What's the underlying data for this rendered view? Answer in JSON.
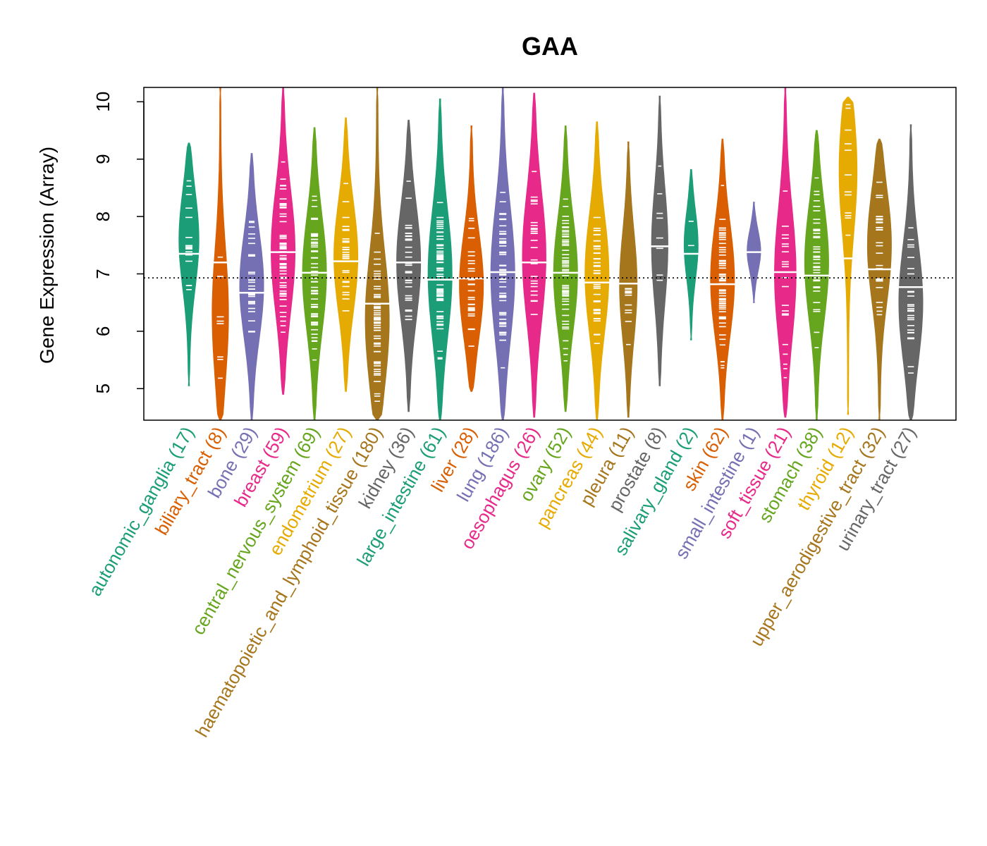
{
  "chart_data": {
    "type": "violin",
    "title": "GAA",
    "xlabel": "",
    "ylabel": "Gene Expression (Array)",
    "ylim": [
      4.45,
      10.25
    ],
    "yticks": [
      5,
      6,
      7,
      8,
      9,
      10
    ],
    "reference_line": 6.93,
    "categories": [
      {
        "name": "autonomic_ganglia",
        "n": 17,
        "label": "autonomic_ganglia (17)",
        "color": "#1B9E77",
        "median": 7.35,
        "min": 5.05,
        "max": 9.28,
        "widest_at": 7.6
      },
      {
        "name": "biliary_tract",
        "n": 8,
        "label": "biliary_tract (8)",
        "color": "#D95F02",
        "median": 7.2,
        "min": 4.45,
        "max": 10.25,
        "widest_at": 6.3
      },
      {
        "name": "bone",
        "n": 29,
        "label": "bone (29)",
        "color": "#7570B3",
        "median": 6.67,
        "min": 4.45,
        "max": 9.1,
        "widest_at": 6.8
      },
      {
        "name": "breast",
        "n": 59,
        "label": "breast (59)",
        "color": "#E7298A",
        "median": 7.38,
        "min": 4.9,
        "max": 10.25,
        "widest_at": 7.4
      },
      {
        "name": "central_nervous_system",
        "n": 69,
        "label": "central_nervous_system (69)",
        "color": "#66A61E",
        "median": 7.02,
        "min": 4.45,
        "max": 9.55,
        "widest_at": 7.0
      },
      {
        "name": "endometrium",
        "n": 27,
        "label": "endometrium (27)",
        "color": "#E6AB02",
        "median": 7.22,
        "min": 4.95,
        "max": 9.72,
        "widest_at": 7.3
      },
      {
        "name": "haematopoietic_and_lymphoid_tissue",
        "n": 180,
        "label": "haematopoietic_and_lymphoid_tissue (180)",
        "color": "#A6761D",
        "median": 6.48,
        "min": 4.45,
        "max": 10.25,
        "widest_at": 6.2
      },
      {
        "name": "kidney",
        "n": 36,
        "label": "kidney (36)",
        "color": "#666666",
        "median": 7.2,
        "min": 4.6,
        "max": 9.68,
        "widest_at": 7.2
      },
      {
        "name": "large_intestine",
        "n": 61,
        "label": "large_intestine (61)",
        "color": "#1B9E77",
        "median": 6.9,
        "min": 4.45,
        "max": 10.05,
        "widest_at": 7.0
      },
      {
        "name": "liver",
        "n": 28,
        "label": "liver (28)",
        "color": "#D95F02",
        "median": 6.92,
        "min": 4.95,
        "max": 9.58,
        "widest_at": 6.8
      },
      {
        "name": "lung",
        "n": 186,
        "label": "lung (186)",
        "color": "#7570B3",
        "median": 7.03,
        "min": 4.45,
        "max": 10.25,
        "widest_at": 7.0
      },
      {
        "name": "oesophagus",
        "n": 26,
        "label": "oesophagus (26)",
        "color": "#E7298A",
        "median": 7.2,
        "min": 4.5,
        "max": 10.15,
        "widest_at": 7.3
      },
      {
        "name": "ovary",
        "n": 52,
        "label": "ovary (52)",
        "color": "#66A61E",
        "median": 7.02,
        "min": 4.6,
        "max": 9.58,
        "widest_at": 7.0
      },
      {
        "name": "pancreas",
        "n": 44,
        "label": "pancreas (44)",
        "color": "#E6AB02",
        "median": 6.85,
        "min": 4.45,
        "max": 9.65,
        "widest_at": 7.0
      },
      {
        "name": "pleura",
        "n": 11,
        "label": "pleura (11)",
        "color": "#A6761D",
        "median": 6.83,
        "min": 4.5,
        "max": 9.3,
        "widest_at": 6.8
      },
      {
        "name": "prostate",
        "n": 8,
        "label": "prostate (8)",
        "color": "#666666",
        "median": 7.48,
        "min": 5.05,
        "max": 10.1,
        "widest_at": 7.5
      },
      {
        "name": "salivary_gland",
        "n": 2,
        "label": "salivary_gland (2)",
        "color": "#1B9E77",
        "median": 7.35,
        "min": 5.85,
        "max": 8.82,
        "widest_at": 7.5
      },
      {
        "name": "skin",
        "n": 62,
        "label": "skin (62)",
        "color": "#D95F02",
        "median": 6.82,
        "min": 4.45,
        "max": 9.35,
        "widest_at": 6.9
      },
      {
        "name": "small_intestine",
        "n": 1,
        "label": "small_intestine (1)",
        "color": "#7570B3",
        "median": 7.38,
        "min": 6.5,
        "max": 8.25,
        "widest_at": 7.4
      },
      {
        "name": "soft_tissue",
        "n": 21,
        "label": "soft_tissue (21)",
        "color": "#E7298A",
        "median": 7.03,
        "min": 4.5,
        "max": 10.25,
        "widest_at": 7.0
      },
      {
        "name": "stomach",
        "n": 38,
        "label": "stomach (38)",
        "color": "#66A61E",
        "median": 6.97,
        "min": 4.45,
        "max": 9.5,
        "widest_at": 7.2
      },
      {
        "name": "thyroid",
        "n": 12,
        "label": "thyroid (12)",
        "color": "#E6AB02",
        "median": 7.27,
        "min": 4.55,
        "max": 10.08,
        "widest_at": 8.8
      },
      {
        "name": "upper_aerodigestive_tract",
        "n": 32,
        "label": "upper_aerodigestive_tract (32)",
        "color": "#A6761D",
        "median": 7.08,
        "min": 4.45,
        "max": 9.35,
        "widest_at": 7.5
      },
      {
        "name": "urinary_tract",
        "n": 27,
        "label": "urinary_tract (27)",
        "color": "#666666",
        "median": 6.77,
        "min": 4.45,
        "max": 9.6,
        "widest_at": 6.5
      }
    ]
  }
}
